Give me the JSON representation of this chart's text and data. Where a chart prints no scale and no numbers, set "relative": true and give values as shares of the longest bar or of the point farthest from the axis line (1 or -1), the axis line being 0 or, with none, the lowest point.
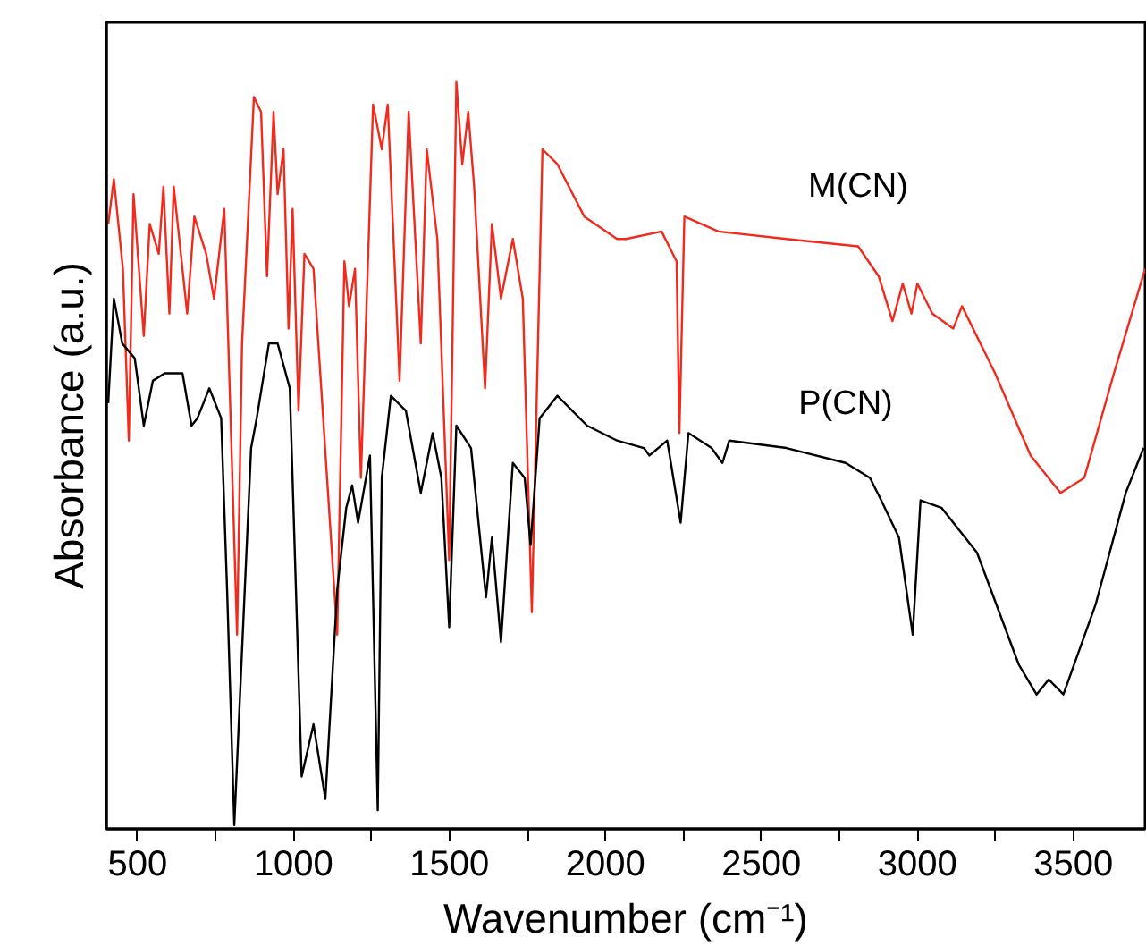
{
  "chart_data": {
    "type": "line",
    "relative": true,
    "xlabel": "Wavenumber (cm⁻¹)",
    "ylabel": "Absorbance (a.u.)",
    "xlim": [
      400,
      3730
    ],
    "xticks": [
      500,
      {
        "value": 750,
        "label": null
      },
      1000,
      {
        "value": 1250,
        "label": null
      },
      1500,
      {
        "value": 1750,
        "label": null
      },
      2000,
      {
        "value": 2250,
        "label": null
      },
      2500,
      {
        "value": 2750,
        "label": null
      },
      3000,
      {
        "value": 3250,
        "label": null
      },
      3500
    ],
    "grid": false,
    "line_style": "solid",
    "marker": "none",
    "series": [
      {
        "name": "M(CN)",
        "color": "#f02a1c",
        "x": [
          406,
          424,
          453,
          472,
          487,
          520,
          539,
          568,
          583,
          602,
          616,
          659,
          682,
          720,
          745,
          778,
          819,
          835,
          873,
          896,
          915,
          936,
          949,
          968,
          984,
          997,
          1016,
          1035,
          1064,
          1140,
          1163,
          1178,
          1197,
          1216,
          1255,
          1283,
          1302,
          1340,
          1369,
          1408,
          1427,
          1461,
          1499,
          1522,
          1541,
          1560,
          1579,
          1614,
          1636,
          1665,
          1703,
          1735,
          1764,
          1798,
          1846,
          1932,
          2037,
          2066,
          2180,
          2228,
          2237,
          2253,
          2362,
          2580,
          2810,
          2876,
          2920,
          2953,
          2981,
          3000,
          3048,
          3115,
          3143,
          3249,
          3363,
          3459,
          3535,
          3630,
          3730
        ],
        "values": [
          0.81,
          0.87,
          0.75,
          0.52,
          0.85,
          0.66,
          0.81,
          0.77,
          0.86,
          0.69,
          0.86,
          0.69,
          0.82,
          0.77,
          0.71,
          0.83,
          0.26,
          0.65,
          0.98,
          0.96,
          0.74,
          0.96,
          0.85,
          0.91,
          0.67,
          0.83,
          0.56,
          0.77,
          0.75,
          0.26,
          0.76,
          0.7,
          0.75,
          0.47,
          0.97,
          0.91,
          0.97,
          0.6,
          0.96,
          0.65,
          0.91,
          0.79,
          0.36,
          1.0,
          0.89,
          0.96,
          0.86,
          0.59,
          0.81,
          0.71,
          0.79,
          0.71,
          0.29,
          0.91,
          0.89,
          0.82,
          0.79,
          0.79,
          0.8,
          0.76,
          0.53,
          0.82,
          0.8,
          0.79,
          0.78,
          0.74,
          0.68,
          0.73,
          0.69,
          0.73,
          0.69,
          0.67,
          0.7,
          0.61,
          0.5,
          0.45,
          0.47,
          0.61,
          0.75
        ]
      },
      {
        "name": "P(CN)",
        "color": "#000000",
        "x": [
          406,
          424,
          451,
          491,
          520,
          549,
          587,
          644,
          673,
          692,
          730,
          768,
          787,
          810,
          835,
          864,
          882,
          921,
          949,
          988,
          1026,
          1064,
          1102,
          1140,
          1169,
          1188,
          1207,
          1245,
          1270,
          1283,
          1312,
          1360,
          1408,
          1446,
          1474,
          1499,
          1522,
          1569,
          1617,
          1636,
          1665,
          1703,
          1741,
          1760,
          1789,
          1846,
          1941,
          2037,
          2123,
          2141,
          2198,
          2241,
          2266,
          2340,
          2375,
          2397,
          2580,
          2770,
          2848,
          2884,
          2941,
          2985,
          3010,
          3077,
          3191,
          3325,
          3382,
          3421,
          3468,
          3571,
          3668,
          3725
        ],
        "values": [
          0.57,
          0.71,
          0.65,
          0.63,
          0.54,
          0.6,
          0.61,
          0.61,
          0.54,
          0.55,
          0.59,
          0.55,
          0.32,
          0.005,
          0.24,
          0.51,
          0.55,
          0.65,
          0.65,
          0.59,
          0.07,
          0.14,
          0.04,
          0.32,
          0.43,
          0.46,
          0.41,
          0.5,
          0.025,
          0.47,
          0.58,
          0.56,
          0.45,
          0.53,
          0.47,
          0.27,
          0.54,
          0.51,
          0.31,
          0.39,
          0.25,
          0.49,
          0.47,
          0.38,
          0.55,
          0.58,
          0.54,
          0.52,
          0.51,
          0.5,
          0.52,
          0.41,
          0.53,
          0.51,
          0.49,
          0.52,
          0.51,
          0.49,
          0.47,
          0.44,
          0.39,
          0.26,
          0.44,
          0.43,
          0.37,
          0.22,
          0.18,
          0.2,
          0.18,
          0.3,
          0.45,
          0.51
        ]
      }
    ]
  }
}
